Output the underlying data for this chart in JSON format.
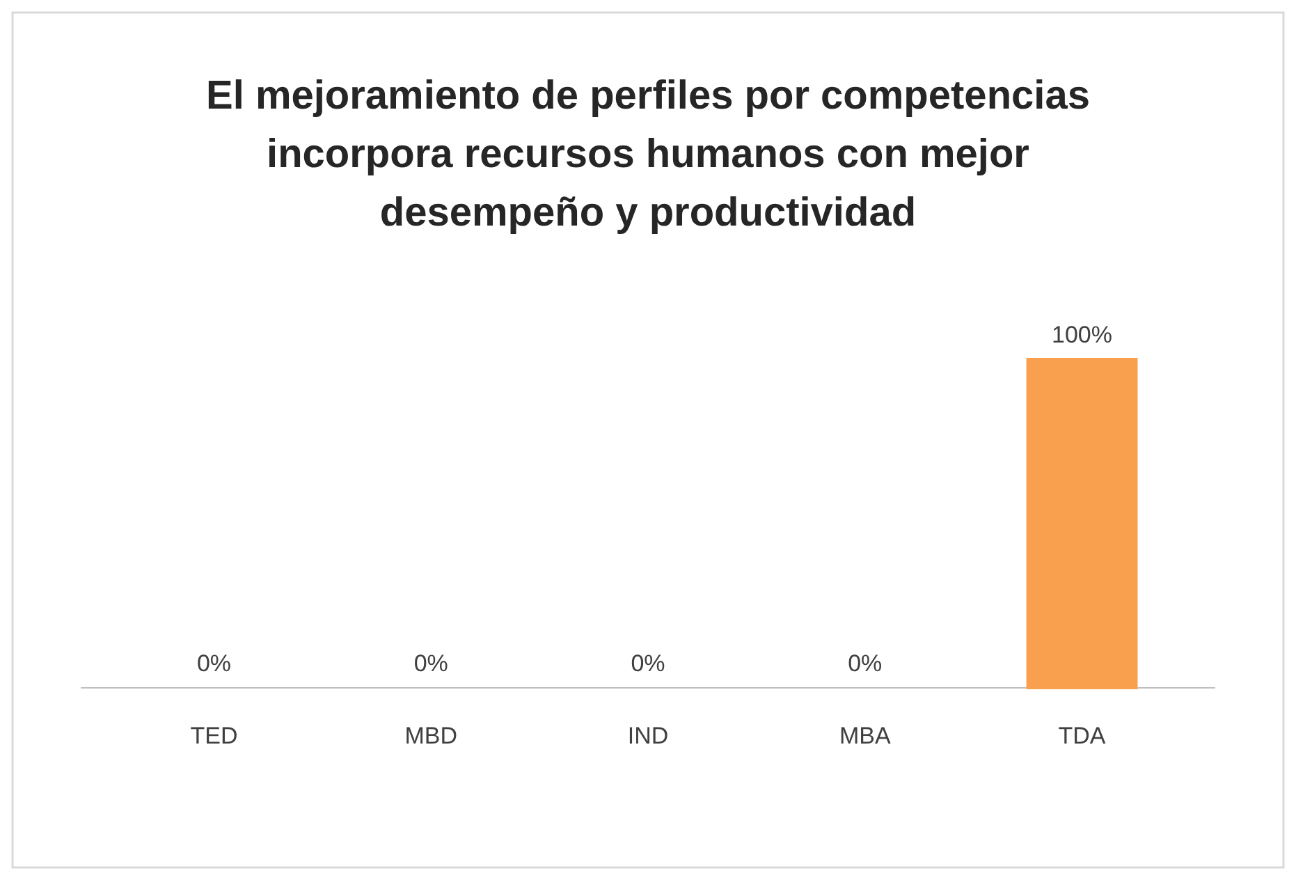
{
  "chart_data": {
    "type": "bar",
    "title": "El mejoramiento de perfiles por competencias incorpora recursos humanos con mejor desempeño y productividad",
    "categories": [
      "TED",
      "MBD",
      "IND",
      "MBA",
      "TDA"
    ],
    "values": [
      0,
      0,
      0,
      0,
      100
    ],
    "colors": [
      "#9c5a24",
      "#1f3a63",
      "#6a1c1c",
      "#6c6478",
      "#f9a04f"
    ],
    "value_labels": [
      "0%",
      "0%",
      "0%",
      "0%",
      "100%"
    ]
  }
}
